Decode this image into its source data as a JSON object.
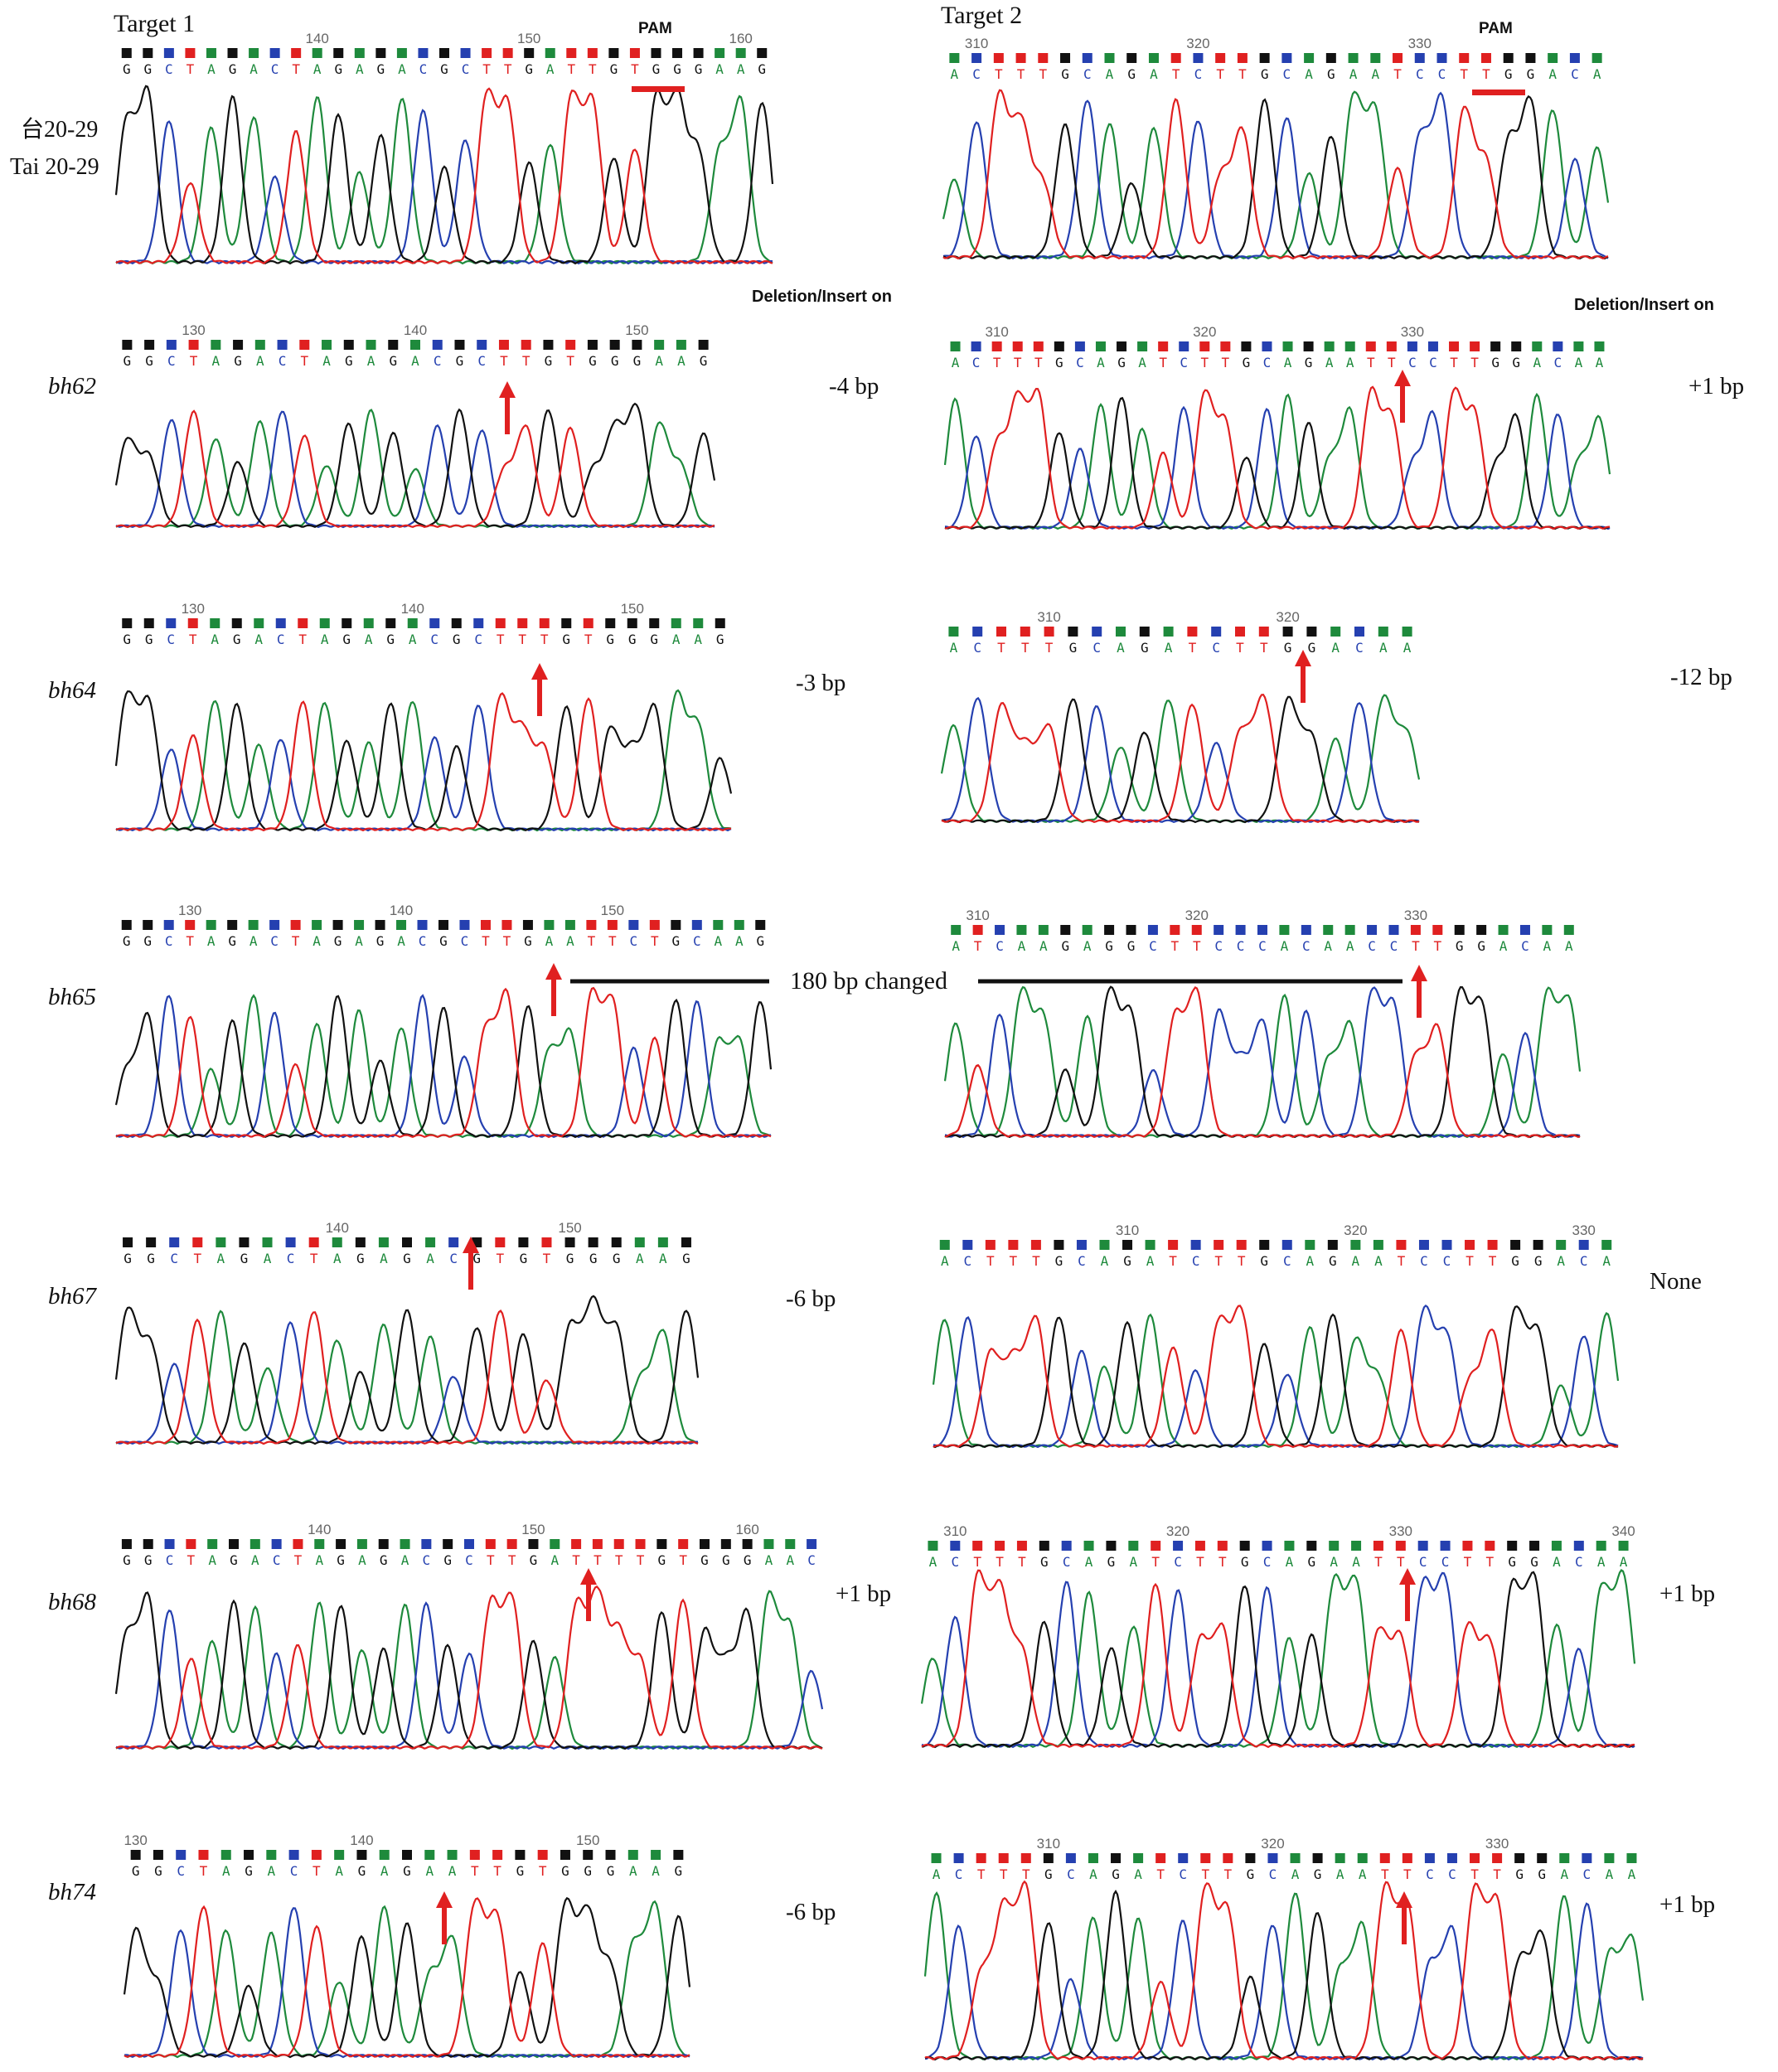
{
  "colors": {
    "A": "#1e8a3c",
    "C": "#2540b0",
    "G": "#111111",
    "T": "#e02020",
    "marker": "#e02020",
    "bar": "#111111"
  },
  "headers": {
    "target1": "Target 1",
    "target2": "Target 2",
    "pam": "PAM",
    "deletion_col": "Deletion/Insert on"
  },
  "rows": [
    {
      "id": "wt",
      "label_zh": "台20-29",
      "label_en": "Tai 20-29",
      "italic": false,
      "t1": {
        "seq": "GGCTAGACTAGAGACGCTTGATTGTGGGAAG",
        "start": 131,
        "ticks": [
          "140",
          "150",
          "160"
        ],
        "pam": true,
        "marker": false
      },
      "t2": {
        "seq": "ACTTTGCAGATCTTGCAGAATCCTTGGACA",
        "start": 309,
        "ticks": [
          "310",
          "320",
          "330"
        ],
        "pam": true,
        "marker": false
      },
      "t1_change": "",
      "t2_change": ""
    },
    {
      "id": "bh62",
      "label": "bh62",
      "italic": true,
      "t1": {
        "seq": "GGCTAGACTAGAGACGCTTGTGGGAAG",
        "start": 127,
        "ticks": [
          "130",
          "140",
          "150"
        ],
        "marker": true
      },
      "t2": {
        "seq": "ACTTTGCAGATCTTGCAGAATTCCTTGGACAA",
        "start": 308,
        "ticks": [
          "310",
          "320",
          "330"
        ],
        "marker": true
      },
      "t1_change": "-4 bp",
      "t2_change": "+1 bp"
    },
    {
      "id": "bh64",
      "label": "bh64",
      "italic": true,
      "t1": {
        "seq": "GGCTAGACTAGAGACGCTTTGTGGGAAG",
        "start": 127,
        "ticks": [
          "130",
          "140",
          "150"
        ],
        "marker": true
      },
      "t2": {
        "seq": "ACTTTGCAGATCTTGGACAA",
        "start": 306,
        "ticks": [
          "310",
          "320"
        ],
        "marker": true
      },
      "t1_change": "-3 bp",
      "t2_change": "-12 bp"
    },
    {
      "id": "bh65",
      "label": "bh65",
      "italic": true,
      "t1": {
        "seq": "GGCTAGACTAGAGACGCTTGAATTCTGCAAG",
        "start": 127,
        "ticks": [
          "130",
          "140",
          "150"
        ],
        "marker": true
      },
      "t2": {
        "seq": "ATCAAGAGGCTTCCCACAACCTTGGACAA",
        "start": 309,
        "ticks": [
          "310",
          "320",
          "330"
        ],
        "marker": true
      },
      "t1_change": "",
      "t2_change": "",
      "span_text": "180 bp changed"
    },
    {
      "id": "bh67",
      "label": "bh67",
      "italic": true,
      "t1": {
        "seq": "GGCTAGACTAGAGACGTGTGGGAAG",
        "start": 131,
        "ticks": [
          "140",
          "150"
        ],
        "marker": true
      },
      "t2": {
        "seq": "ACTTTGCAGATCTTGCAGAATCCTTGGACA",
        "start": 302,
        "ticks": [
          "310",
          "320",
          "330"
        ],
        "marker": false
      },
      "t1_change": "-6 bp",
      "t2_change": "None"
    },
    {
      "id": "bh68",
      "label": "bh68",
      "italic": true,
      "t1": {
        "seq": "GGCTAGACTAGAGACGCTTGATTTTGTGGGAAC",
        "start": 131,
        "ticks": [
          "140",
          "150",
          "160"
        ],
        "marker": true
      },
      "t2": {
        "seq": "ACTTTGCAGATCTTGCAGAATTCCTTGGACAA",
        "start": 309,
        "ticks": [
          "310",
          "320",
          "330",
          "340"
        ],
        "marker": true
      },
      "t1_change": "+1 bp",
      "t2_change": "+1 bp"
    },
    {
      "id": "bh74",
      "label": "bh74",
      "italic": true,
      "t1": {
        "seq": "GGCTAGACTAGAGAATTGTGGGAAG",
        "start": 130,
        "ticks": [
          "130",
          "140",
          "150"
        ],
        "marker": true
      },
      "t2": {
        "seq": "ACTTTGCAGATCTTGCAGAATTCCTTGGACAA",
        "start": 305,
        "ticks": [
          "310",
          "320",
          "330"
        ],
        "marker": true
      },
      "t1_change": "-6 bp",
      "t2_change": "+1 bp"
    }
  ]
}
